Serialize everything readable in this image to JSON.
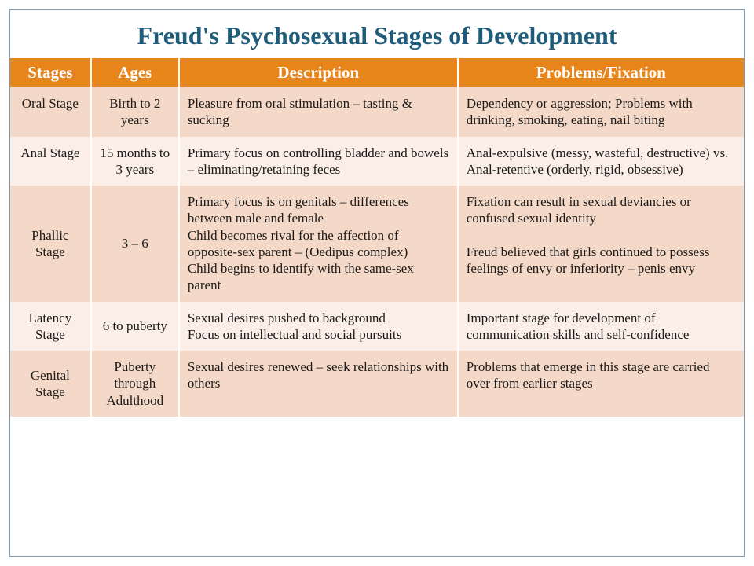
{
  "title": "Freud's Psychosexual Stages of Development",
  "colors": {
    "title_text": "#1f5c7a",
    "header_bg": "#e8851a",
    "header_text": "#ffffff",
    "row_odd_bg": "#f5d9c8",
    "row_even_bg": "#fbeee6",
    "cell_text": "#1a1a1a",
    "frame_border": "#7a9bb0"
  },
  "fonts": {
    "title_size_pt": 32,
    "header_size_pt": 21,
    "cell_size_pt": 17,
    "family": "Georgia / serif"
  },
  "columns": [
    {
      "key": "stage",
      "label": "Stages",
      "width_pct": 11,
      "align": "center"
    },
    {
      "key": "ages",
      "label": "Ages",
      "width_pct": 12,
      "align": "center"
    },
    {
      "key": "description",
      "label": "Description",
      "width_pct": 38,
      "align": "left"
    },
    {
      "key": "problems",
      "label": "Problems/Fixation",
      "width_pct": 39,
      "align": "left"
    }
  ],
  "rows": [
    {
      "stage": "Oral Stage",
      "ages": "Birth to 2 years",
      "description": "Pleasure from oral stimulation – tasting & sucking",
      "problems": "Dependency or aggression; Problems with drinking, smoking, eating, nail biting"
    },
    {
      "stage": "Anal Stage",
      "ages": "15 months to 3 years",
      "description": "Primary focus on controlling bladder and bowels – eliminating/retaining feces",
      "problems": "Anal-expulsive (messy, wasteful, destructive) vs. Anal-retentive (orderly, rigid, obsessive)"
    },
    {
      "stage": "Phallic Stage",
      "ages": "3 – 6",
      "description": "Primary focus is on genitals – differences between male and female\nChild becomes rival for the affection of opposite-sex parent – (Oedipus complex)\nChild begins to identify with the same-sex parent",
      "problems": "Fixation can result in sexual deviancies or confused sexual identity\n\nFreud believed that girls continued to possess feelings of envy or inferiority – penis envy"
    },
    {
      "stage": "Latency Stage",
      "ages": "6 to puberty",
      "description": "Sexual desires pushed to background\nFocus on intellectual and social pursuits",
      "problems": "Important stage for development of communication skills and self-confidence"
    },
    {
      "stage": "Genital Stage",
      "ages": "Puberty through Adulthood",
      "description": "Sexual desires renewed – seek relationships with others",
      "problems": "Problems that emerge in this stage are carried over from earlier stages"
    }
  ]
}
